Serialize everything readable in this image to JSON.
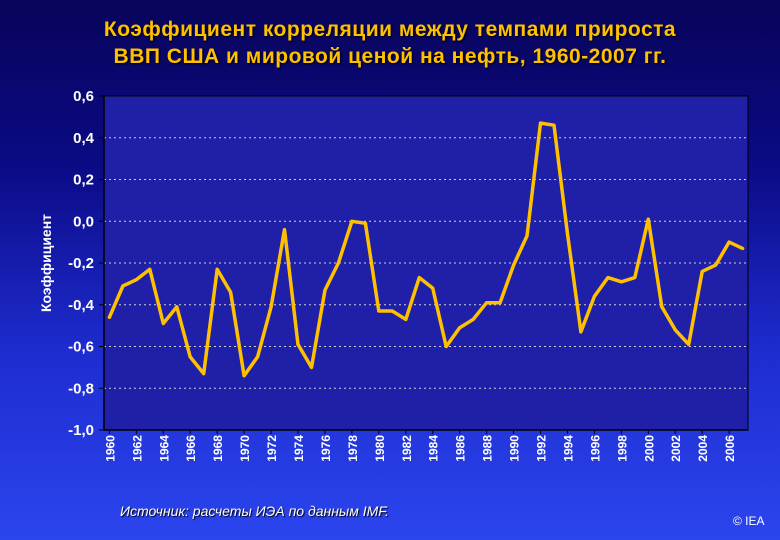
{
  "title": {
    "line1": "Коэффициент корреляции между темпами прироста",
    "line2": "ВВП США и мировой ценой на нефть, 1960-2007 гг."
  },
  "source": "Источник: расчеты ИЭА по данным IMF.",
  "copyright": "© IEA",
  "colors": {
    "line": "#ffc000",
    "plot_background": "#1f1fa8",
    "axis_text": "#ffffff",
    "grid": "#d0d0d0"
  },
  "chart_data": {
    "type": "line",
    "title": "Коэффициент корреляции между темпами прироста ВВП США и мировой ценой на нефть, 1960-2007 гг.",
    "xlabel": "",
    "ylabel": "Коэффициент",
    "ylim": [
      -1.0,
      0.6
    ],
    "xlim": [
      1960,
      2007
    ],
    "grid": true,
    "yticks": [
      "0,6",
      "0,4",
      "0,2",
      "0,0",
      "-0,2",
      "-0,4",
      "-0,6",
      "-0,8",
      "-1,0"
    ],
    "ytick_values": [
      0.6,
      0.4,
      0.2,
      0.0,
      -0.2,
      -0.4,
      -0.6,
      -0.8,
      -1.0
    ],
    "xticks": [
      "1960",
      "1962",
      "1964",
      "1966",
      "1968",
      "1970",
      "1972",
      "1974",
      "1976",
      "1978",
      "1980",
      "1982",
      "1984",
      "1986",
      "1988",
      "1990",
      "1992",
      "1994",
      "1996",
      "1998",
      "2000",
      "2002",
      "2004",
      "2006"
    ],
    "series": [
      {
        "x": [
          1960,
          1961,
          1962,
          1963,
          1964,
          1965,
          1966,
          1967,
          1968,
          1969,
          1970,
          1971,
          1972,
          1973,
          1974,
          1975,
          1976,
          1977,
          1978,
          1979,
          1980,
          1981,
          1982,
          1983,
          1984,
          1985,
          1986,
          1987,
          1988,
          1989,
          1990,
          1991,
          1992,
          1993,
          1994,
          1995,
          1996,
          1997,
          1998,
          1999,
          2000,
          2001,
          2002,
          2003,
          2004,
          2005,
          2006,
          2007
        ],
        "values": [
          -0.46,
          -0.31,
          -0.28,
          -0.23,
          -0.49,
          -0.41,
          -0.65,
          -0.73,
          -0.23,
          -0.34,
          -0.74,
          -0.65,
          -0.41,
          -0.04,
          -0.59,
          -0.7,
          -0.33,
          -0.2,
          0.0,
          -0.01,
          -0.43,
          -0.43,
          -0.47,
          -0.27,
          -0.32,
          -0.6,
          -0.51,
          -0.47,
          -0.39,
          -0.39,
          -0.21,
          -0.07,
          0.47,
          0.46,
          -0.06,
          -0.53,
          -0.36,
          -0.27,
          -0.29,
          -0.27,
          0.01,
          -0.41,
          -0.52,
          -0.59,
          -0.24,
          -0.21,
          -0.1,
          -0.13
        ]
      }
    ]
  }
}
